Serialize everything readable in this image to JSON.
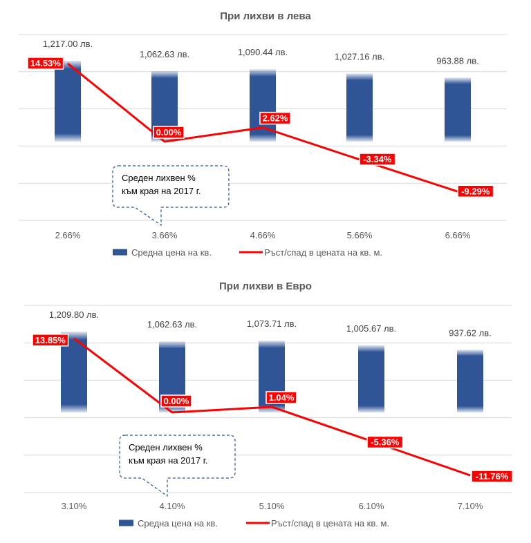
{
  "colors": {
    "bar": "#2F5597",
    "line": "#FF0000",
    "grid": "#D9D9D9",
    "callout_border": "#2F5597"
  },
  "chart_data": [
    {
      "type": "bar+line",
      "title": "При лихви в лева",
      "categories": [
        "2.66%",
        "3.66%",
        "4.66%",
        "5.66%",
        "6.66%"
      ],
      "series": [
        {
          "name": "Средна цена на кв.",
          "type": "bar",
          "values": [
            1217.0,
            1062.63,
            1090.44,
            1027.16,
            963.88
          ],
          "labels": [
            "1,217.00 лв.",
            "1,062.63 лв.",
            "1,090.44 лв.",
            "1,027.16 лв.",
            "963.88 лв."
          ]
        },
        {
          "name": "Ръст/спад в цената на кв. м.",
          "type": "line",
          "values": [
            14.53,
            0.0,
            2.62,
            -3.34,
            -9.29
          ],
          "labels": [
            "14.53%",
            "0.00%",
            "2.62%",
            "-3.34%",
            "-9.29%"
          ]
        }
      ],
      "callout": {
        "line1": "Среден лихвен %",
        "line2": "към края на 2017 г.",
        "points_to": "3.66%"
      },
      "legend_position": "bottom",
      "grid": true
    },
    {
      "type": "bar+line",
      "title": "При лихви в Евро",
      "categories": [
        "3.10%",
        "4.10%",
        "5.10%",
        "6.10%",
        "7.10%"
      ],
      "series": [
        {
          "name": "Средна цена на кв.",
          "type": "bar",
          "values": [
            1209.8,
            1062.63,
            1073.71,
            1005.67,
            937.62
          ],
          "labels": [
            "1,209.80 лв.",
            "1,062.63 лв.",
            "1,073.71 лв.",
            "1,005.67 лв.",
            "937.62 лв."
          ]
        },
        {
          "name": "Ръст/спад в цената на кв. м.",
          "type": "line",
          "values": [
            13.85,
            0.0,
            1.04,
            -5.36,
            -11.76
          ],
          "labels": [
            "13.85%",
            "0.00%",
            "1.04%",
            "-5.36%",
            "-11.76%"
          ]
        }
      ],
      "callout": {
        "line1": "Среден лихвен %",
        "line2": "към края на 2017 г.",
        "points_to": "4.10%"
      },
      "legend_position": "bottom",
      "grid": true
    }
  ]
}
